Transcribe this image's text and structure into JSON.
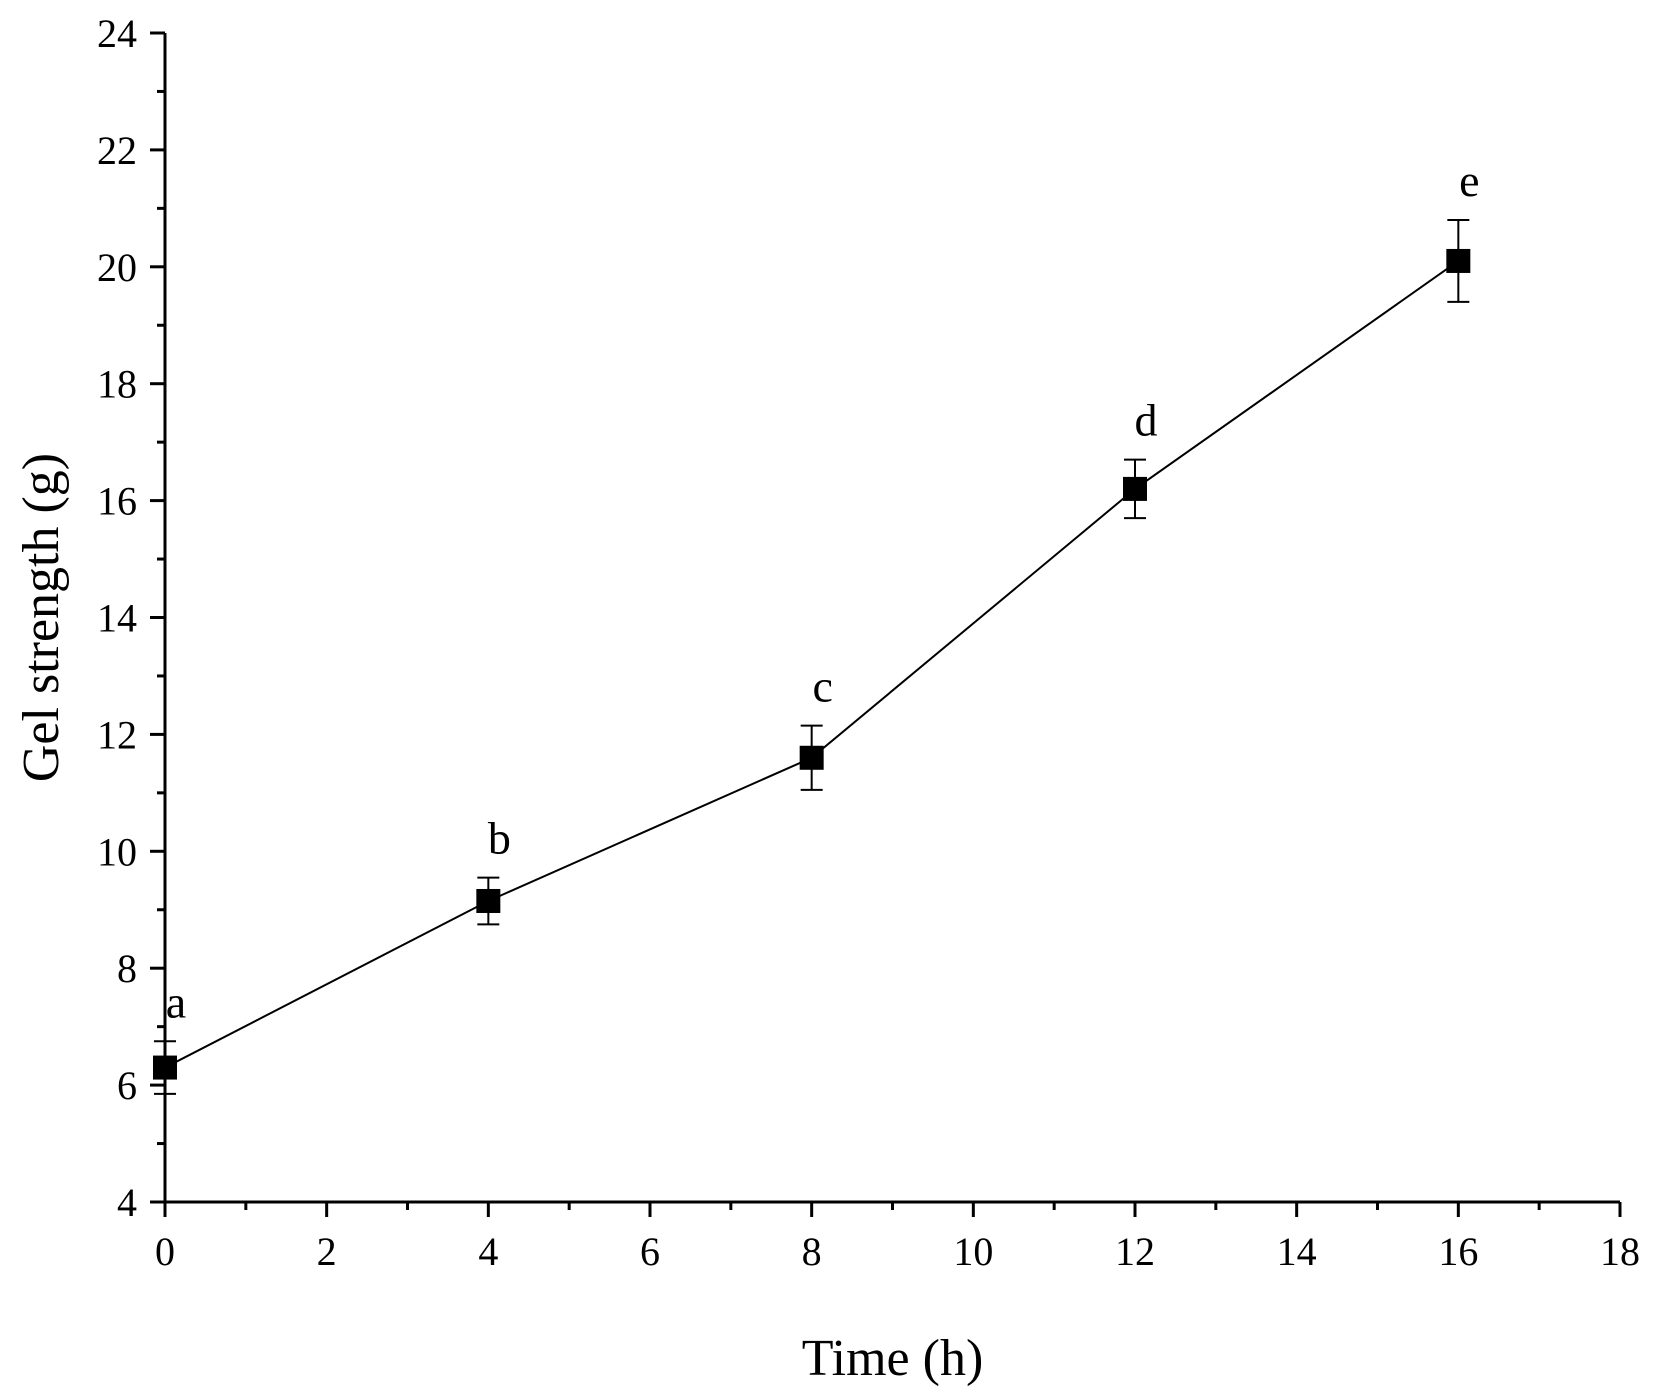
{
  "chart_data": {
    "type": "line",
    "title": "",
    "xlabel": "Time (h)",
    "ylabel": "Gel strength (g)",
    "xlim": [
      0,
      18
    ],
    "ylim": [
      4,
      24
    ],
    "xticks": [
      0,
      2,
      4,
      6,
      8,
      10,
      12,
      14,
      16,
      18
    ],
    "yticks": [
      4,
      6,
      8,
      10,
      12,
      14,
      16,
      18,
      20,
      22,
      24
    ],
    "grid": false,
    "legend": "none",
    "marker": "square",
    "color": "#000000",
    "series": [
      {
        "x": [
          0,
          4,
          8,
          12,
          16
        ],
        "y": [
          6.3,
          9.15,
          11.6,
          16.2,
          20.1
        ],
        "error": [
          0.45,
          0.4,
          0.55,
          0.5,
          0.7
        ],
        "labels": [
          "a",
          "b",
          "c",
          "d",
          "e"
        ]
      }
    ]
  }
}
